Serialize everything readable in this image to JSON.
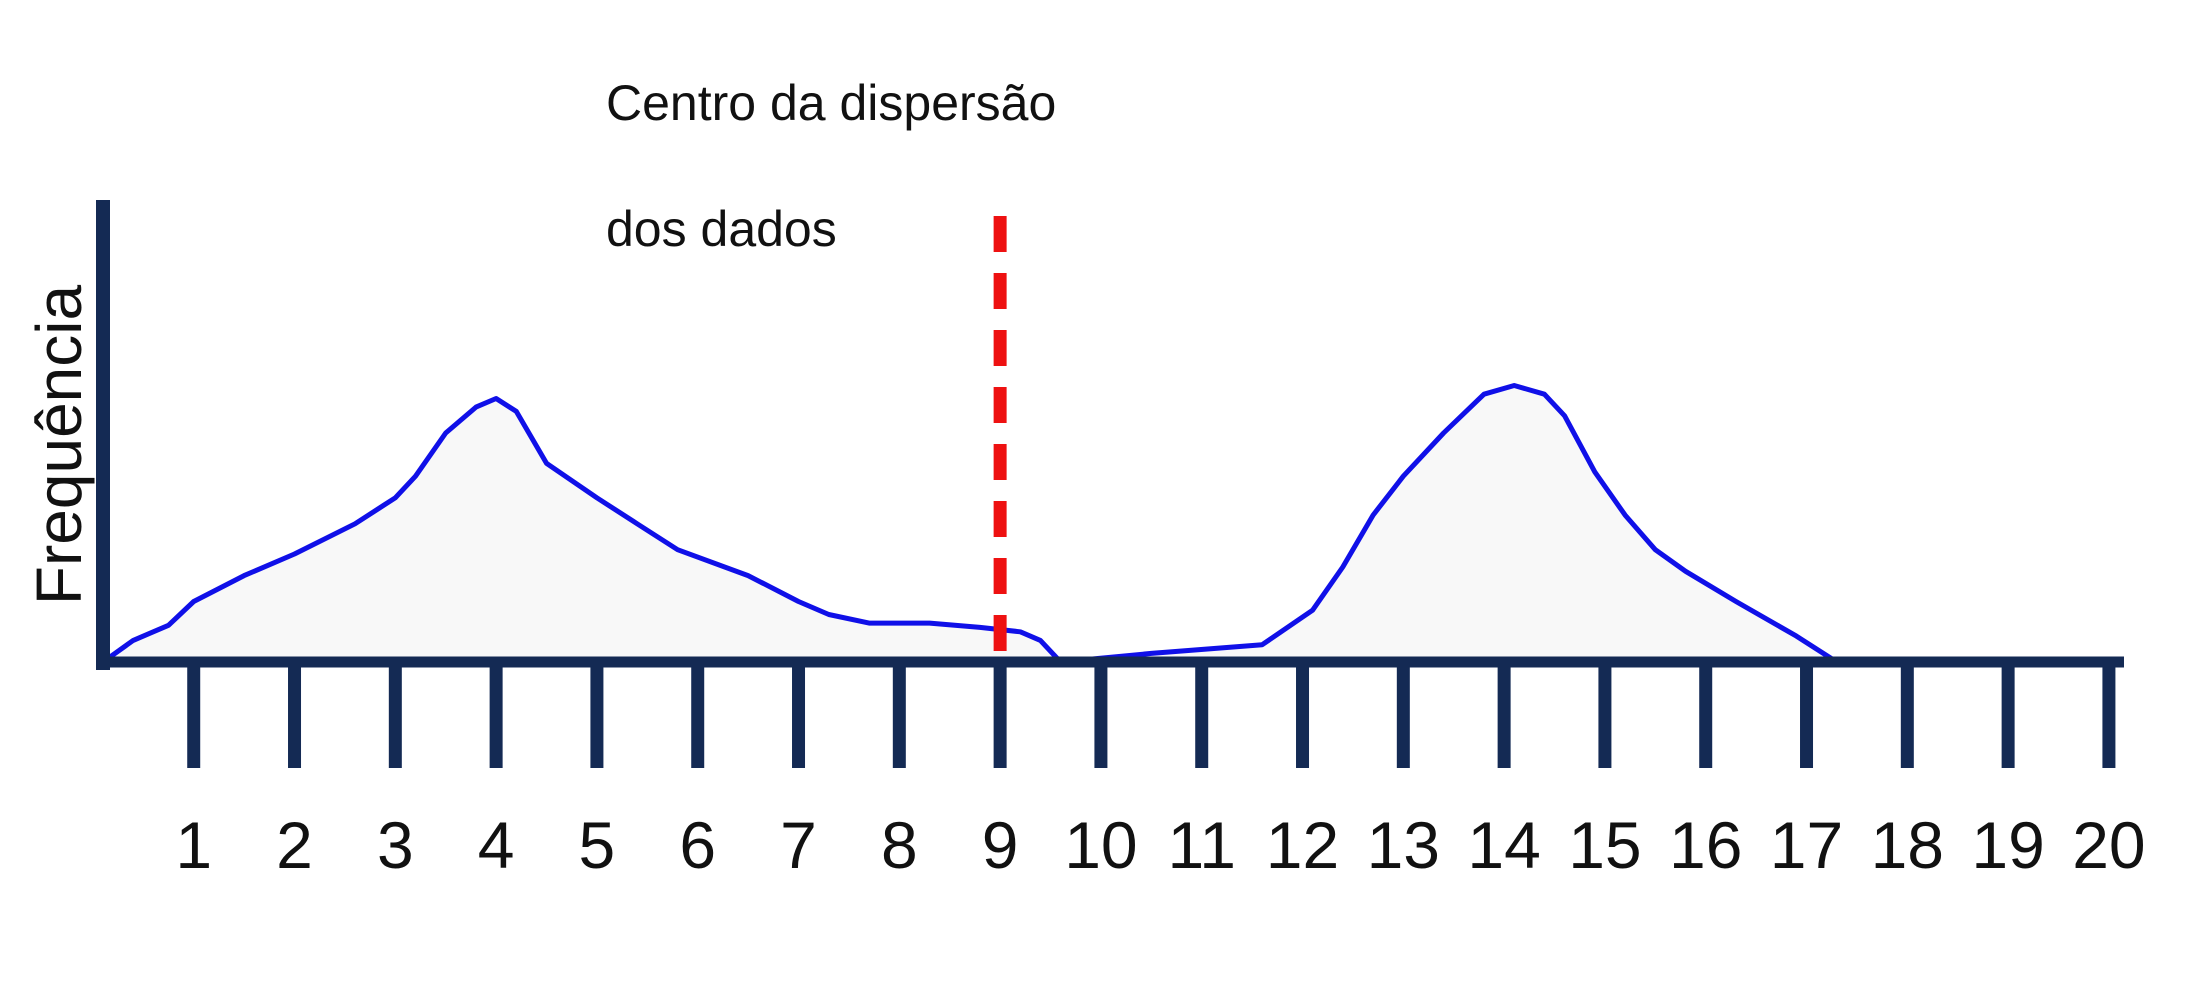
{
  "chart_data": {
    "type": "area",
    "ylabel": "Frequência",
    "annotation": [
      "Centro da dispersão",
      "dos dados"
    ],
    "categories": [
      "1",
      "2",
      "3",
      "4",
      "5",
      "6",
      "7",
      "8",
      "9",
      "10",
      "11",
      "12",
      "13",
      "14",
      "15",
      "16",
      "17",
      "18",
      "19",
      "20"
    ],
    "center_line": {
      "x": 9
    },
    "x_range": [
      0.1,
      20
    ],
    "y_range": [
      0,
      1
    ],
    "grid": false,
    "legend": "none",
    "series": [
      {
        "points": [
          [
            0.1,
            0.0
          ],
          [
            0.4,
            0.05
          ],
          [
            0.75,
            0.085
          ],
          [
            1.0,
            0.14
          ],
          [
            1.5,
            0.2
          ],
          [
            2.0,
            0.25
          ],
          [
            2.6,
            0.32
          ],
          [
            3.0,
            0.38
          ],
          [
            3.2,
            0.43
          ],
          [
            3.5,
            0.53
          ],
          [
            3.8,
            0.59
          ],
          [
            4.0,
            0.61
          ],
          [
            4.2,
            0.58
          ],
          [
            4.5,
            0.46
          ],
          [
            5.0,
            0.38
          ],
          [
            5.4,
            0.32
          ],
          [
            5.8,
            0.26
          ],
          [
            6.5,
            0.2
          ],
          [
            7.0,
            0.14
          ],
          [
            7.3,
            0.11
          ],
          [
            7.7,
            0.09
          ],
          [
            8.3,
            0.09
          ],
          [
            8.8,
            0.08
          ],
          [
            9.2,
            0.07
          ],
          [
            9.4,
            0.05
          ],
          [
            9.6,
            0.0
          ],
          [
            10.5,
            0.02
          ],
          [
            11.6,
            0.04
          ],
          [
            12.1,
            0.12
          ],
          [
            12.4,
            0.22
          ],
          [
            12.7,
            0.34
          ],
          [
            13.0,
            0.43
          ],
          [
            13.4,
            0.53
          ],
          [
            13.8,
            0.62
          ],
          [
            14.1,
            0.64
          ],
          [
            14.4,
            0.62
          ],
          [
            14.6,
            0.57
          ],
          [
            14.9,
            0.44
          ],
          [
            15.2,
            0.34
          ],
          [
            15.5,
            0.26
          ],
          [
            15.8,
            0.21
          ],
          [
            16.3,
            0.14
          ],
          [
            16.9,
            0.06
          ],
          [
            17.3,
            0.0
          ]
        ]
      }
    ]
  },
  "colors": {
    "axis": "#142a54",
    "curve": "#1010e8",
    "fill": "#f8f8f8",
    "center_line": "#ee1111"
  }
}
